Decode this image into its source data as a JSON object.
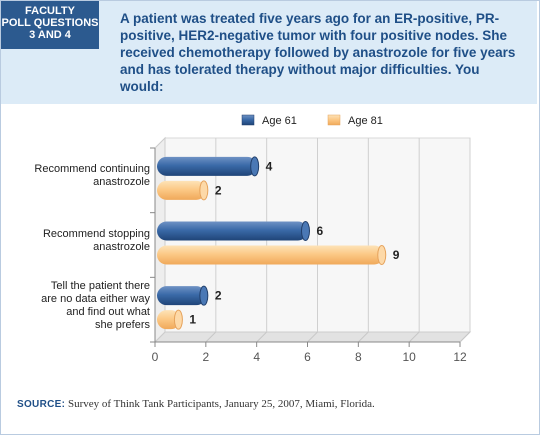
{
  "badge": {
    "line1": "FACULTY",
    "line2": "POLL QUESTIONS",
    "line3": "3 AND 4"
  },
  "question": "A patient was treated five years ago for an ER-positive, PR-positive, HER2-negative tumor with four positive nodes. She received chemotherapy followed by anastrozole for five years and has tolerated therapy without major difficulties. You would:",
  "source": {
    "label": "SOURCE:",
    "text": "Survey of Think Tank Participants, January 25, 2007, Miami, Florida."
  },
  "chart_data": {
    "type": "bar",
    "orientation": "horizontal",
    "categories": [
      "Recommend continuing anastrozole",
      "Recommend stopping anastrozole",
      "Tell the patient there are no data either way and find out what she prefers"
    ],
    "category_lines": [
      [
        "Recommend continuing",
        "anastrozole"
      ],
      [
        "Recommend stopping",
        "anastrozole"
      ],
      [
        "Tell the patient there",
        "are no data either way",
        "and find out what",
        "she prefers"
      ]
    ],
    "series": [
      {
        "name": "Age 61",
        "values": [
          4,
          6,
          2
        ],
        "color": "#2e5a94"
      },
      {
        "name": "Age 81",
        "values": [
          2,
          9,
          1
        ],
        "color": "#fbc98a"
      }
    ],
    "xlim": [
      0,
      12
    ],
    "xticks": [
      0,
      2,
      4,
      6,
      8,
      10,
      12
    ],
    "legend": "top"
  }
}
